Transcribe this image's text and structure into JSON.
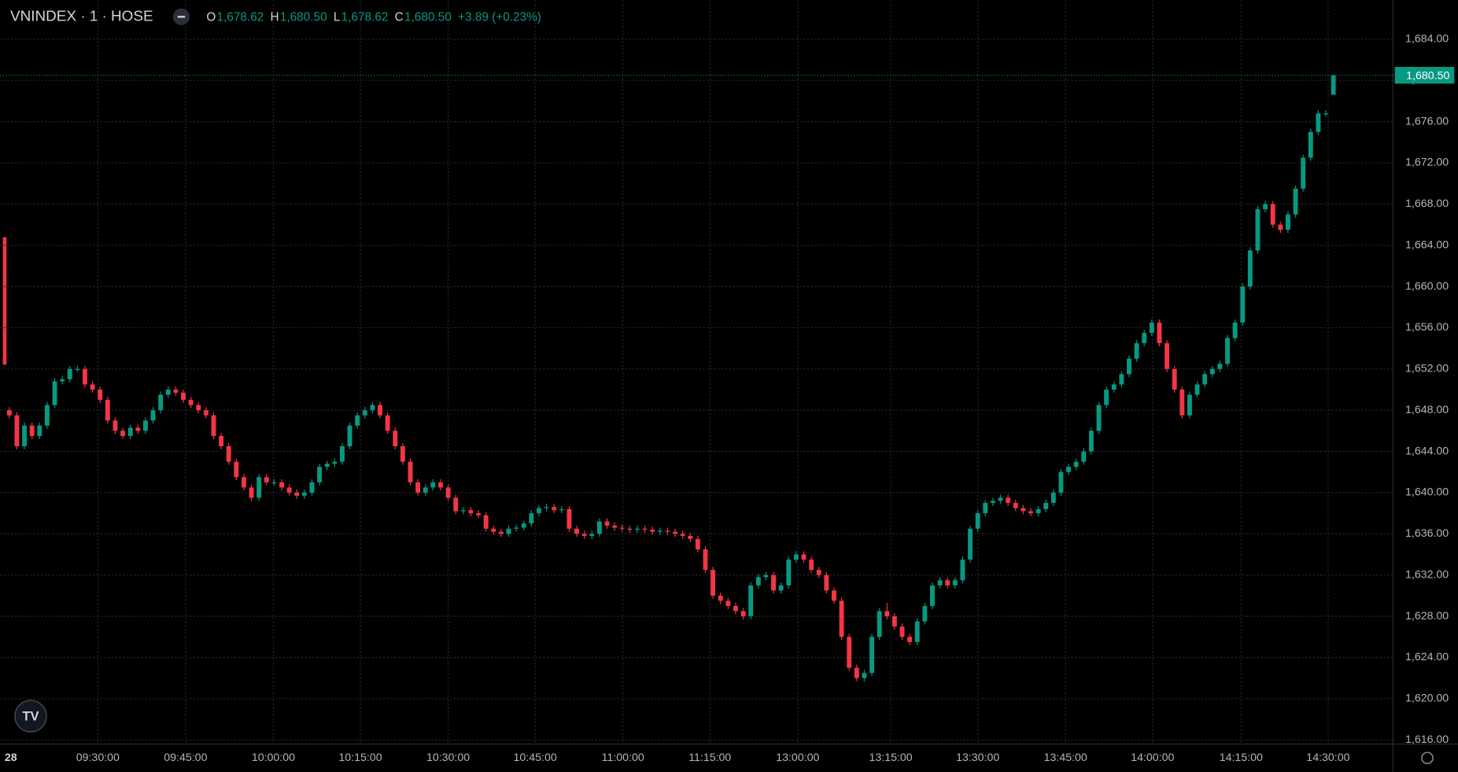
{
  "chart_data": {
    "type": "candlestick",
    "title": "VNINDEX · 1 · HOSE",
    "legend_values": [
      {
        "label": "O",
        "value": "1,678.62"
      },
      {
        "label": "H",
        "value": "1,680.50"
      },
      {
        "label": "L",
        "value": "1,678.62"
      },
      {
        "label": "C",
        "value": "1,680.50"
      }
    ],
    "change": "+3.89 (+0.23%)",
    "last_price": {
      "value": 1680.5,
      "label": "1,680.50"
    },
    "up_color": "#089981",
    "down_color": "#f23645",
    "grid": true,
    "ylim": [
      1615.6,
      1687.8
    ],
    "yticks": [
      {
        "value": 1616,
        "label": "1,616.00"
      },
      {
        "value": 1620,
        "label": "1,620.00"
      },
      {
        "value": 1624,
        "label": "1,624.00"
      },
      {
        "value": 1628,
        "label": "1,628.00"
      },
      {
        "value": 1632,
        "label": "1,632.00"
      },
      {
        "value": 1636,
        "label": "1,636.00"
      },
      {
        "value": 1640,
        "label": "1,640.00"
      },
      {
        "value": 1644,
        "label": "1,644.00"
      },
      {
        "value": 1648,
        "label": "1,648.00"
      },
      {
        "value": 1652,
        "label": "1,652.00"
      },
      {
        "value": 1656,
        "label": "1,656.00"
      },
      {
        "value": 1660,
        "label": "1,660.00"
      },
      {
        "value": 1664,
        "label": "1,664.00"
      },
      {
        "value": 1668,
        "label": "1,668.00"
      },
      {
        "value": 1672,
        "label": "1,672.00"
      },
      {
        "value": 1676,
        "label": "1,676.00"
      },
      {
        "value": 1680,
        "label": "1,680.00"
      },
      {
        "value": 1684,
        "label": "1,684.00"
      }
    ],
    "xlim": [
      -1,
      184
    ],
    "xticks": [
      {
        "value": 0,
        "label": "28"
      },
      {
        "value": 11.7,
        "label": "09:30:00"
      },
      {
        "value": 23.3,
        "label": "09:45:00"
      },
      {
        "value": 34.9,
        "label": "10:00:00"
      },
      {
        "value": 46.4,
        "label": "10:15:00"
      },
      {
        "value": 58,
        "label": "10:30:00"
      },
      {
        "value": 69.5,
        "label": "10:45:00"
      },
      {
        "value": 81.1,
        "label": "11:00:00"
      },
      {
        "value": 92.6,
        "label": "11:15:00"
      },
      {
        "value": 104.2,
        "label": "13:00:00"
      },
      {
        "value": 116.5,
        "label": "13:15:00"
      },
      {
        "value": 128,
        "label": "13:30:00"
      },
      {
        "value": 139.6,
        "label": "13:45:00"
      },
      {
        "value": 151.1,
        "label": "14:00:00"
      },
      {
        "value": 162.8,
        "label": "14:15:00"
      },
      {
        "value": 174.3,
        "label": "14:30:00"
      }
    ],
    "candles": [
      [
        1648,
        1648.3,
        1647.2,
        1647.5
      ],
      [
        1647.5,
        1647.8,
        1644.2,
        1644.5
      ],
      [
        1644.5,
        1646.8,
        1644.2,
        1646.5
      ],
      [
        1646.5,
        1646.8,
        1645.2,
        1645.5
      ],
      [
        1645.5,
        1646.8,
        1645.2,
        1646.5
      ],
      [
        1646.5,
        1648.8,
        1646.2,
        1648.5
      ],
      [
        1648.5,
        1651.1,
        1648.2,
        1650.8
      ],
      [
        1650.8,
        1651.3,
        1650.5,
        1651
      ],
      [
        1651,
        1652.3,
        1650.7,
        1652
      ],
      [
        1652,
        1652.3,
        1651.7,
        1652
      ],
      [
        1652,
        1652.3,
        1650.2,
        1650.5
      ],
      [
        1650.5,
        1650.8,
        1649.7,
        1650
      ],
      [
        1650,
        1650.3,
        1648.7,
        1649
      ],
      [
        1649,
        1649.3,
        1646.7,
        1647
      ],
      [
        1647,
        1647.3,
        1645.7,
        1646
      ],
      [
        1646,
        1646.3,
        1645.2,
        1645.5
      ],
      [
        1645.5,
        1646.6,
        1645.2,
        1646.3
      ],
      [
        1646.3,
        1646.6,
        1645.7,
        1646
      ],
      [
        1646,
        1647.3,
        1645.7,
        1647
      ],
      [
        1647,
        1648.3,
        1646.7,
        1648
      ],
      [
        1648,
        1649.8,
        1647.7,
        1649.5
      ],
      [
        1649.5,
        1650.3,
        1649.2,
        1650
      ],
      [
        1650,
        1650.3,
        1649.4,
        1649.7
      ],
      [
        1649.7,
        1650,
        1648.7,
        1649
      ],
      [
        1649,
        1649.3,
        1648.2,
        1648.5
      ],
      [
        1648.5,
        1648.8,
        1647.7,
        1648
      ],
      [
        1648,
        1648.3,
        1647.2,
        1647.5
      ],
      [
        1647.5,
        1647.8,
        1645.2,
        1645.5
      ],
      [
        1645.5,
        1645.8,
        1644.2,
        1644.5
      ],
      [
        1644.5,
        1644.8,
        1642.7,
        1643
      ],
      [
        1643,
        1643.3,
        1641.2,
        1641.5
      ],
      [
        1641.5,
        1641.8,
        1640.2,
        1640.5
      ],
      [
        1640.5,
        1640.8,
        1639.2,
        1639.5
      ],
      [
        1639.5,
        1641.8,
        1639.2,
        1641.5
      ],
      [
        1641.5,
        1641.8,
        1640.7,
        1641
      ],
      [
        1641,
        1641.3,
        1640.7,
        1641
      ],
      [
        1641,
        1641.3,
        1640.2,
        1640.5
      ],
      [
        1640.5,
        1640.8,
        1639.7,
        1640
      ],
      [
        1640,
        1640.3,
        1639.4,
        1639.7
      ],
      [
        1639.7,
        1640.3,
        1639.4,
        1640
      ],
      [
        1640,
        1641.3,
        1639.7,
        1641
      ],
      [
        1641,
        1642.8,
        1640.7,
        1642.5
      ],
      [
        1642.5,
        1643.1,
        1642.2,
        1642.8
      ],
      [
        1642.8,
        1643.3,
        1642.5,
        1643
      ],
      [
        1643,
        1644.8,
        1642.7,
        1644.5
      ],
      [
        1644.5,
        1646.8,
        1644.2,
        1646.5
      ],
      [
        1646.5,
        1647.8,
        1646.2,
        1647.5
      ],
      [
        1647.5,
        1648.3,
        1647.2,
        1648
      ],
      [
        1648,
        1648.8,
        1647.7,
        1648.5
      ],
      [
        1648.5,
        1648.8,
        1647.2,
        1647.5
      ],
      [
        1647.5,
        1647.8,
        1645.7,
        1646
      ],
      [
        1646,
        1646.3,
        1644.2,
        1644.5
      ],
      [
        1644.5,
        1644.8,
        1642.7,
        1643
      ],
      [
        1643,
        1643.3,
        1640.7,
        1641
      ],
      [
        1641,
        1641.3,
        1639.7,
        1640
      ],
      [
        1640,
        1640.8,
        1639.7,
        1640.5
      ],
      [
        1640.5,
        1641.3,
        1640.2,
        1641
      ],
      [
        1641,
        1641.3,
        1640.2,
        1640.5
      ],
      [
        1640.5,
        1640.8,
        1639.2,
        1639.5
      ],
      [
        1639.5,
        1639.8,
        1637.9,
        1638.2
      ],
      [
        1638.2,
        1638.6,
        1637.9,
        1638.3
      ],
      [
        1638.3,
        1638.6,
        1637.7,
        1638
      ],
      [
        1638,
        1638.3,
        1637.5,
        1637.8
      ],
      [
        1637.8,
        1638.1,
        1636.2,
        1636.5
      ],
      [
        1636.5,
        1636.8,
        1635.9,
        1636.2
      ],
      [
        1636.2,
        1636.5,
        1635.7,
        1636
      ],
      [
        1636,
        1636.8,
        1635.7,
        1636.5
      ],
      [
        1636.5,
        1636.9,
        1636.2,
        1636.6
      ],
      [
        1636.6,
        1637.3,
        1636.3,
        1637
      ],
      [
        1637,
        1638.3,
        1636.7,
        1638
      ],
      [
        1638,
        1638.8,
        1637.7,
        1638.5
      ],
      [
        1638.5,
        1638.9,
        1638.2,
        1638.6
      ],
      [
        1638.6,
        1638.9,
        1638,
        1638.3
      ],
      [
        1638.3,
        1638.7,
        1638,
        1638.4
      ],
      [
        1638.4,
        1638.7,
        1636.2,
        1636.5
      ],
      [
        1636.5,
        1636.8,
        1635.7,
        1636
      ],
      [
        1636,
        1636.3,
        1635.5,
        1635.8
      ],
      [
        1635.8,
        1636.3,
        1635.5,
        1636
      ],
      [
        1636,
        1637.5,
        1635.7,
        1637.2
      ],
      [
        1637.2,
        1637.5,
        1636.5,
        1636.8
      ],
      [
        1636.8,
        1637.1,
        1636.3,
        1636.6
      ],
      [
        1636.6,
        1636.9,
        1636.2,
        1636.5
      ],
      [
        1636.5,
        1636.8,
        1636.1,
        1636.4
      ],
      [
        1636.4,
        1636.8,
        1636.1,
        1636.5
      ],
      [
        1636.5,
        1636.8,
        1636.1,
        1636.4
      ],
      [
        1636.4,
        1636.7,
        1635.9,
        1636.2
      ],
      [
        1636.2,
        1636.6,
        1635.9,
        1636.3
      ],
      [
        1636.3,
        1636.6,
        1635.9,
        1636.2
      ],
      [
        1636.2,
        1636.5,
        1635.7,
        1636
      ],
      [
        1636,
        1636.3,
        1635.5,
        1635.8
      ],
      [
        1635.8,
        1636.1,
        1635.2,
        1635.5
      ],
      [
        1635.5,
        1635.8,
        1634.2,
        1634.5
      ],
      [
        1634.5,
        1634.8,
        1632.2,
        1632.5
      ],
      [
        1632.5,
        1632.8,
        1629.7,
        1630
      ],
      [
        1630,
        1630.3,
        1629.2,
        1629.5
      ],
      [
        1629.5,
        1629.8,
        1628.7,
        1629
      ],
      [
        1629,
        1629.3,
        1628.2,
        1628.5
      ],
      [
        1628.5,
        1628.8,
        1627.7,
        1628
      ],
      [
        1628,
        1631.3,
        1627.7,
        1631
      ],
      [
        1631,
        1632.1,
        1630.7,
        1631.8
      ],
      [
        1631.8,
        1632.3,
        1631.5,
        1632
      ],
      [
        1632,
        1632.3,
        1630.2,
        1630.5
      ],
      [
        1630.5,
        1631.3,
        1630.2,
        1631
      ],
      [
        1631,
        1633.8,
        1630.7,
        1633.5
      ],
      [
        1633.5,
        1634.3,
        1633.2,
        1634
      ],
      [
        1634,
        1634.3,
        1633.2,
        1633.5
      ],
      [
        1633.5,
        1633.8,
        1632.2,
        1632.5
      ],
      [
        1632.5,
        1632.8,
        1631.7,
        1632
      ],
      [
        1632,
        1632.3,
        1630.2,
        1630.5
      ],
      [
        1630.5,
        1630.8,
        1629.2,
        1629.5
      ],
      [
        1629.5,
        1629.8,
        1625.7,
        1626
      ],
      [
        1626,
        1626.3,
        1622.7,
        1623
      ],
      [
        1623,
        1623.3,
        1621.7,
        1622
      ],
      [
        1622,
        1622.8,
        1621.7,
        1622.5
      ],
      [
        1622.5,
        1626.3,
        1622.2,
        1626
      ],
      [
        1626,
        1628.8,
        1625.7,
        1628.5
      ],
      [
        1628.5,
        1629.3,
        1627.7,
        1628
      ],
      [
        1628,
        1628.3,
        1626.7,
        1627
      ],
      [
        1627,
        1627.3,
        1625.7,
        1626
      ],
      [
        1626,
        1626.3,
        1625.2,
        1625.5
      ],
      [
        1625.5,
        1627.8,
        1625.2,
        1627.5
      ],
      [
        1627.5,
        1629.3,
        1627.2,
        1629
      ],
      [
        1629,
        1631.3,
        1628.7,
        1631
      ],
      [
        1631,
        1631.8,
        1630.7,
        1631.5
      ],
      [
        1631.5,
        1631.8,
        1630.7,
        1631
      ],
      [
        1631,
        1631.8,
        1630.7,
        1631.5
      ],
      [
        1631.5,
        1633.8,
        1631.2,
        1633.5
      ],
      [
        1633.5,
        1636.8,
        1633.2,
        1636.5
      ],
      [
        1636.5,
        1638.3,
        1636.2,
        1638
      ],
      [
        1638,
        1639.3,
        1637.7,
        1639
      ],
      [
        1639,
        1639.5,
        1638.7,
        1639.2
      ],
      [
        1639.2,
        1639.8,
        1638.9,
        1639.5
      ],
      [
        1639.5,
        1639.8,
        1638.7,
        1639
      ],
      [
        1639,
        1639.3,
        1638.2,
        1638.5
      ],
      [
        1638.5,
        1638.8,
        1637.9,
        1638.2
      ],
      [
        1638.2,
        1638.5,
        1637.7,
        1638
      ],
      [
        1638,
        1638.7,
        1637.7,
        1638.4
      ],
      [
        1638.4,
        1639.3,
        1638.1,
        1639
      ],
      [
        1639,
        1640.3,
        1638.7,
        1640
      ],
      [
        1640,
        1642.3,
        1639.7,
        1642
      ],
      [
        1642,
        1642.8,
        1641.7,
        1642.5
      ],
      [
        1642.5,
        1643.3,
        1642.2,
        1643
      ],
      [
        1643,
        1644.3,
        1642.7,
        1644
      ],
      [
        1644,
        1646.3,
        1643.7,
        1646
      ],
      [
        1646,
        1648.8,
        1645.7,
        1648.5
      ],
      [
        1648.5,
        1650.3,
        1648.2,
        1650
      ],
      [
        1650,
        1650.8,
        1649.7,
        1650.5
      ],
      [
        1650.5,
        1651.8,
        1650.2,
        1651.5
      ],
      [
        1651.5,
        1653.3,
        1651.2,
        1653
      ],
      [
        1653,
        1654.8,
        1652.7,
        1654.5
      ],
      [
        1654.5,
        1655.8,
        1654.2,
        1655.5
      ],
      [
        1655.5,
        1656.8,
        1655.2,
        1656.5
      ],
      [
        1656.5,
        1656.8,
        1654.2,
        1654.5
      ],
      [
        1654.5,
        1654.8,
        1651.7,
        1652
      ],
      [
        1652,
        1652.3,
        1649.7,
        1650
      ],
      [
        1650,
        1650.3,
        1647.2,
        1647.5
      ],
      [
        1647.5,
        1649.8,
        1647.2,
        1649.5
      ],
      [
        1649.5,
        1650.8,
        1649.2,
        1650.5
      ],
      [
        1650.5,
        1651.8,
        1650.2,
        1651.5
      ],
      [
        1651.5,
        1652.3,
        1651.2,
        1652
      ],
      [
        1652,
        1652.8,
        1651.7,
        1652.5
      ],
      [
        1652.5,
        1655.3,
        1652.2,
        1655
      ],
      [
        1655,
        1656.8,
        1654.7,
        1656.5
      ],
      [
        1656.5,
        1660.3,
        1656.2,
        1660
      ],
      [
        1660,
        1663.8,
        1659.7,
        1663.5
      ],
      [
        1663.5,
        1667.8,
        1663.2,
        1667.5
      ],
      [
        1667.5,
        1668.3,
        1667.2,
        1668
      ],
      [
        1668,
        1668.3,
        1665.7,
        1666
      ],
      [
        1666,
        1666.3,
        1665.2,
        1665.5
      ],
      [
        1665.5,
        1667.3,
        1665.2,
        1667
      ],
      [
        1667,
        1669.8,
        1666.7,
        1669.5
      ],
      [
        1669.5,
        1672.8,
        1669.2,
        1672.5
      ],
      [
        1672.5,
        1675.3,
        1672.2,
        1675
      ],
      [
        1675,
        1677.1,
        1674.7,
        1676.8
      ],
      [
        1676.8,
        1677.1,
        1676.5,
        1676.8
      ],
      [
        1678.62,
        1680.5,
        1678.62,
        1680.5
      ]
    ]
  }
}
